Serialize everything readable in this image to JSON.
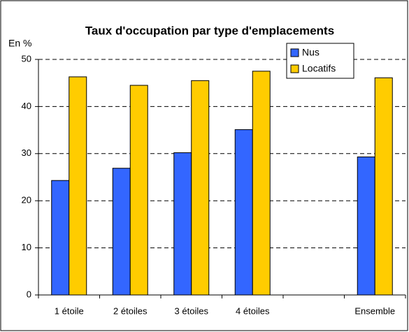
{
  "chart_data": {
    "type": "bar",
    "title": "Taux d'occupation par type d'emplacements",
    "y_label": "En  %",
    "categories": [
      "1 étoile",
      "2 étoiles",
      "3 étoiles",
      "4 étoiles",
      null,
      "Ensemble"
    ],
    "series": [
      {
        "name": "Nus",
        "color": "#3366ff",
        "values": [
          24.3,
          26.9,
          30.2,
          35.1,
          null,
          29.3
        ]
      },
      {
        "name": "Locatifs",
        "color": "#ffcc00",
        "values": [
          46.3,
          44.5,
          45.5,
          47.5,
          null,
          46.1
        ]
      }
    ],
    "ylim": [
      0,
      50
    ],
    "yticks": [
      0,
      10,
      20,
      30,
      40,
      50
    ],
    "grid": true,
    "legend": "top-right"
  }
}
